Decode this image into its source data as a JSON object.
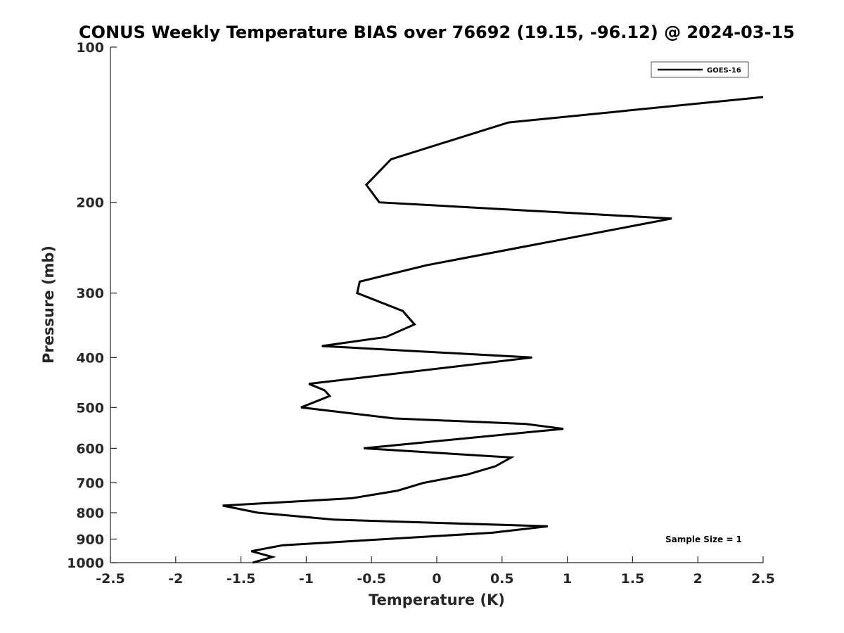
{
  "chart_data": {
    "type": "line",
    "title": "CONUS Weekly Temperature BIAS over 76692 (19.15, -96.12) @ 2024-03-15",
    "xlabel": "Temperature (K)",
    "ylabel": "Pressure (mb)",
    "xlim": [
      -2.5,
      2.5
    ],
    "ylim": [
      1000,
      100
    ],
    "y_scale": "log",
    "y_reversed": true,
    "x_ticks": [
      "-2.5",
      "-2",
      "-1.5",
      "-1",
      "-0.5",
      "0",
      "0.5",
      "1",
      "1.5",
      "2",
      "2.5"
    ],
    "y_ticks": [
      "100",
      "200",
      "300",
      "400",
      "500",
      "600",
      "700",
      "800",
      "900",
      "1000"
    ],
    "grid": false,
    "legend": "top-right",
    "annotation": "Sample Size = 1",
    "series": [
      {
        "name": "GOES-16",
        "color": "#000000",
        "points": [
          {
            "x": -1.41,
            "y": 1000
          },
          {
            "x": -1.26,
            "y": 975
          },
          {
            "x": -1.42,
            "y": 950
          },
          {
            "x": -1.18,
            "y": 925
          },
          {
            "x": 0.42,
            "y": 875
          },
          {
            "x": 0.85,
            "y": 850
          },
          {
            "x": -0.79,
            "y": 825
          },
          {
            "x": -1.37,
            "y": 800
          },
          {
            "x": -1.64,
            "y": 775
          },
          {
            "x": -0.65,
            "y": 750
          },
          {
            "x": -0.3,
            "y": 725
          },
          {
            "x": -0.1,
            "y": 700
          },
          {
            "x": 0.23,
            "y": 675
          },
          {
            "x": 0.45,
            "y": 650
          },
          {
            "x": 0.57,
            "y": 625
          },
          {
            "x": -0.56,
            "y": 600
          },
          {
            "x": 0.97,
            "y": 550
          },
          {
            "x": 0.68,
            "y": 538
          },
          {
            "x": -0.33,
            "y": 525
          },
          {
            "x": -1.04,
            "y": 500
          },
          {
            "x": -0.82,
            "y": 475
          },
          {
            "x": -0.86,
            "y": 463
          },
          {
            "x": -0.98,
            "y": 450
          },
          {
            "x": 0.73,
            "y": 400
          },
          {
            "x": -0.88,
            "y": 380
          },
          {
            "x": -0.39,
            "y": 365
          },
          {
            "x": -0.17,
            "y": 345
          },
          {
            "x": -0.26,
            "y": 325
          },
          {
            "x": -0.61,
            "y": 300
          },
          {
            "x": -0.59,
            "y": 285
          },
          {
            "x": -0.08,
            "y": 265
          },
          {
            "x": 1.8,
            "y": 215
          },
          {
            "x": -0.44,
            "y": 200
          },
          {
            "x": -0.54,
            "y": 185
          },
          {
            "x": -0.35,
            "y": 165
          },
          {
            "x": 0.55,
            "y": 140
          },
          {
            "x": 2.5,
            "y": 125
          }
        ]
      }
    ]
  }
}
